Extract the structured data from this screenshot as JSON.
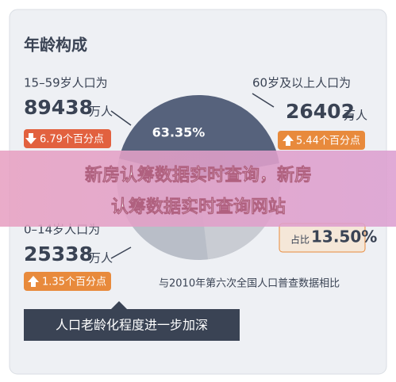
{
  "header": {
    "title": "年龄构成"
  },
  "groups": [
    {
      "label": "15–59岁人口为",
      "number": "89438",
      "unit": "万人",
      "change": "6.79个百分点"
    },
    {
      "label": "60岁及以上人口为",
      "number": "26402",
      "unit": "万人",
      "change": "5.44个百分点"
    },
    {
      "label": "0–14岁人口为",
      "number": "25338",
      "unit": "万人",
      "change": "1.35个百分点"
    }
  ],
  "pie_label": "63.35%",
  "share": {
    "prefix": "占比",
    "value": "13.50%"
  },
  "note": "与2010年第六次全国人口普查数据相比",
  "footer_button": "人口老龄化程度进一步加深",
  "banner": {
    "line1": "新房认筹数据实时查询，新房",
    "line2": "认筹数据实时查询网站"
  }
}
